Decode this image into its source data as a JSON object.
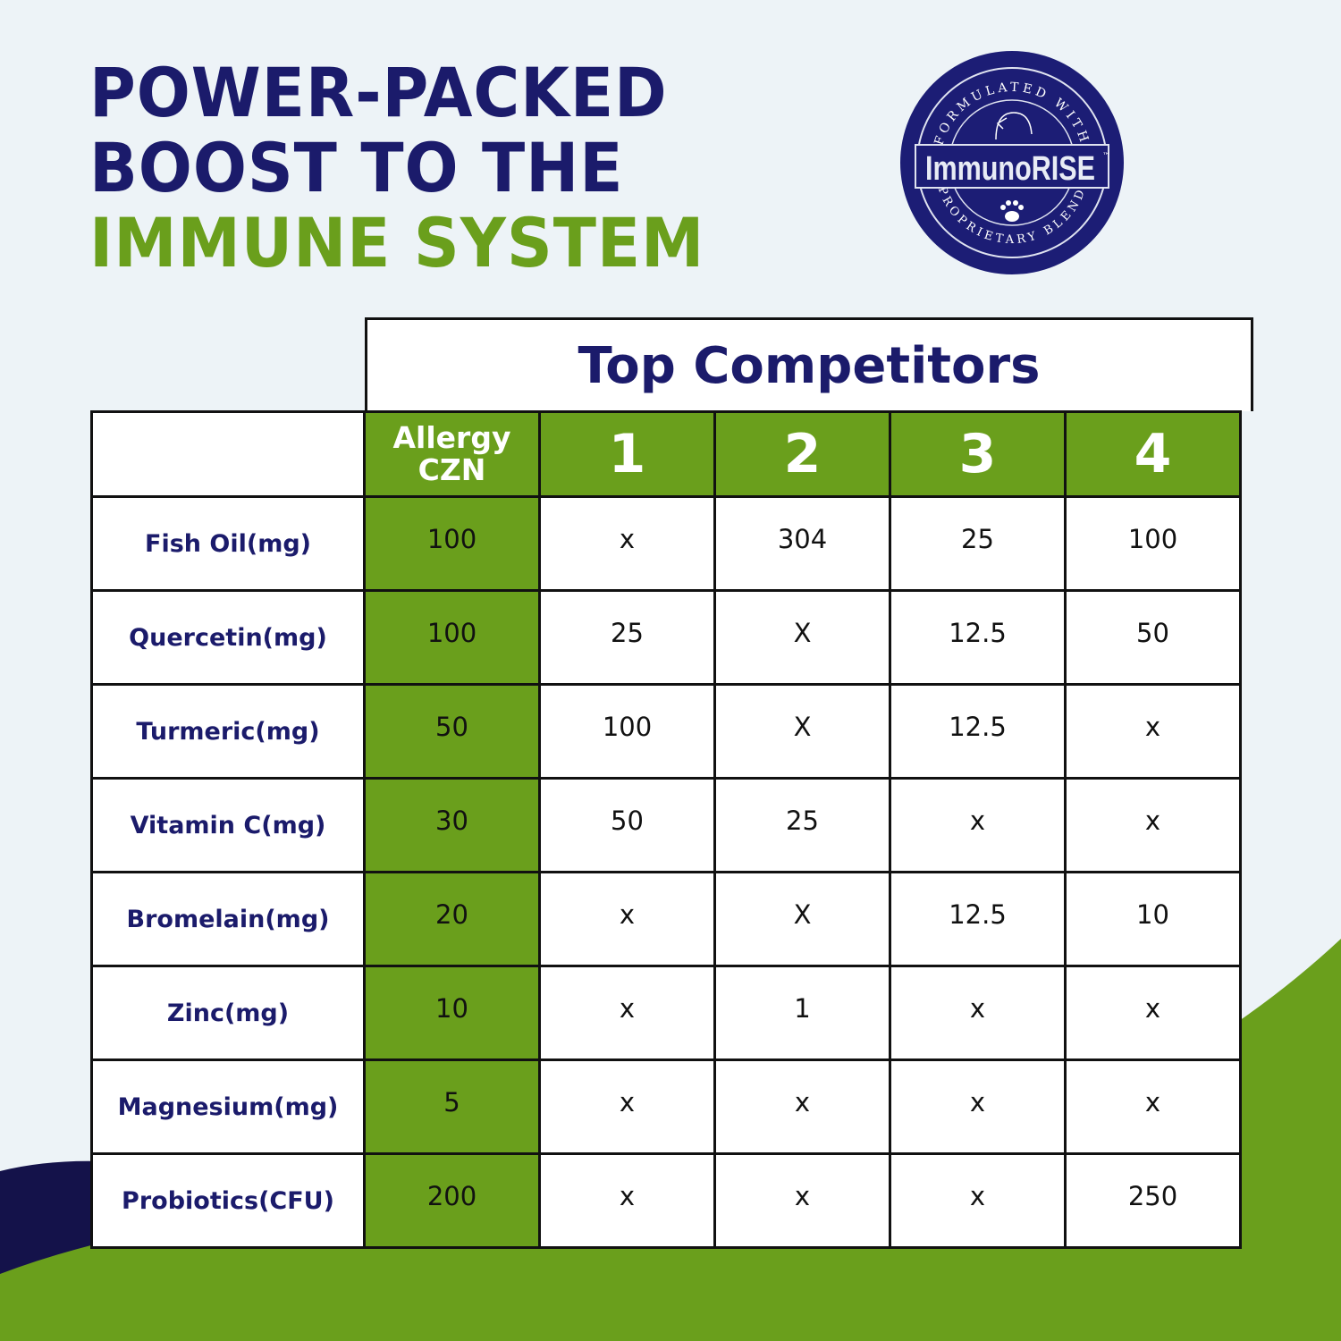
{
  "headline": {
    "line1": "POWER-PACKED",
    "line2": "BOOST TO THE",
    "line3": "IMMUNE SYSTEM"
  },
  "logo": {
    "arc_top": "FORMULATED WITH",
    "name": "ImmunoRISE",
    "trademark": "™",
    "arc_bottom": "PROPRIETARY BLEND",
    "icons": [
      "dog-icon",
      "paw-icon",
      "leaf-branch-icon"
    ]
  },
  "table": {
    "group_header": "Top Competitors",
    "columns": [
      "Allergy CZN",
      "1",
      "2",
      "3",
      "4"
    ],
    "rows": [
      {
        "label": "Fish Oil(mg)",
        "values": [
          "100",
          "x",
          "304",
          "25",
          "100"
        ]
      },
      {
        "label": "Quercetin(mg)",
        "values": [
          "100",
          "25",
          "X",
          "12.5",
          "50"
        ]
      },
      {
        "label": "Turmeric(mg)",
        "values": [
          "50",
          "100",
          "X",
          "12.5",
          "x"
        ]
      },
      {
        "label": "Vitamin C(mg)",
        "values": [
          "30",
          "50",
          "25",
          "x",
          "x"
        ]
      },
      {
        "label": "Bromelain(mg)",
        "values": [
          "20",
          "x",
          "X",
          "12.5",
          "10"
        ]
      },
      {
        "label": "Zinc(mg)",
        "values": [
          "10",
          "x",
          "1",
          "x",
          "x"
        ]
      },
      {
        "label": "Magnesium(mg)",
        "values": [
          "5",
          "x",
          "x",
          "x",
          "x"
        ]
      },
      {
        "label": "Probiotics(CFU)",
        "values": [
          "200",
          "x",
          "x",
          "x",
          "250"
        ]
      }
    ]
  },
  "colors": {
    "navy": "#1b1b6b",
    "green": "#6a9f1c",
    "background": "#edf3f7"
  }
}
